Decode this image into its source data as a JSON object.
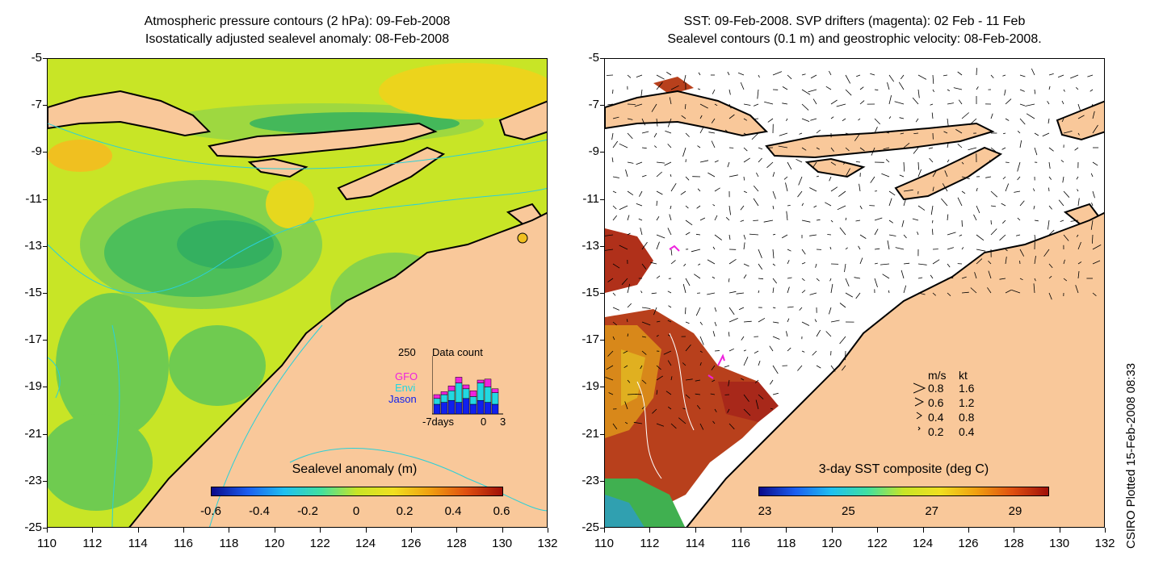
{
  "left_panel": {
    "title_line1": "Atmospheric pressure contours (2 hPa): 09-Feb-2008",
    "title_line2": "Isostatically adjusted sealevel anomaly: 08-Feb-2008",
    "colorbar_title": "Sealevel anomaly (m)",
    "colorbar_ticks": [
      "-0.6",
      "-0.4",
      "-0.2",
      "0",
      "0.2",
      "0.4",
      "0.6"
    ],
    "inset": {
      "max_label": "250",
      "title": "Data count",
      "sat_gfo": "GFO",
      "sat_envi": "Envi",
      "sat_jason": "Jason",
      "x_left": "-7days",
      "x_zero": "0",
      "x_right": "3"
    }
  },
  "right_panel": {
    "title_line1": "SST: 09-Feb-2008. SVP drifters (magenta): 02 Feb - 11 Feb",
    "title_line2": "Sealevel contours (0.1 m) and geostrophic velocity: 08-Feb-2008.",
    "colorbar_title": "3-day SST composite (deg C)",
    "colorbar_ticks": [
      "23",
      "25",
      "27",
      "29"
    ],
    "legend": {
      "header_ms": "m/s",
      "header_kt": "kt",
      "rows": [
        {
          "ms": "0.8",
          "kt": "1.6"
        },
        {
          "ms": "0.6",
          "kt": "1.2"
        },
        {
          "ms": "0.4",
          "kt": "0.8"
        },
        {
          "ms": "0.2",
          "kt": "0.4"
        }
      ]
    }
  },
  "axes": {
    "lat_labels": [
      "-5",
      "-7",
      "-9",
      "-11",
      "-13",
      "-15",
      "-17",
      "-19",
      "-21",
      "-23",
      "-25"
    ],
    "lon_labels": [
      "110",
      "112",
      "114",
      "116",
      "118",
      "120",
      "122",
      "124",
      "126",
      "128",
      "130",
      "132"
    ]
  },
  "credit": "CSIRO Plotted 15-Feb-2008 08:33",
  "colors": {
    "land": "#f9c89a",
    "ocean_green": "#7ed14a",
    "ocean_yellow": "#d6ec2a",
    "contour_cyan": "#2ad0d8",
    "magenta": "#ee22dd"
  }
}
